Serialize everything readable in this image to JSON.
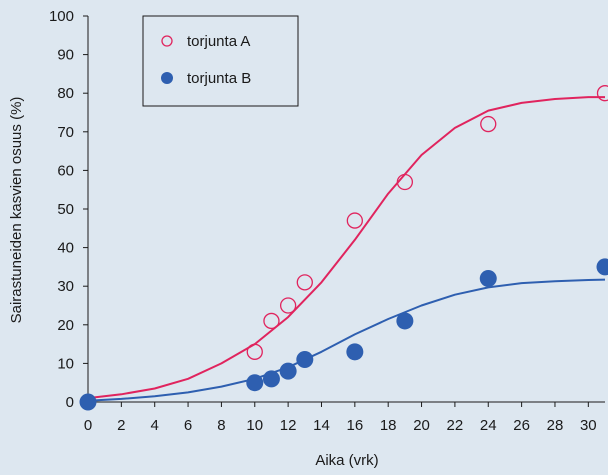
{
  "chart_data": {
    "type": "scatter",
    "title": "",
    "xlabel": "Aika (vrk)",
    "ylabel": "Sairastuneiden kasvien osuus (%)",
    "xlim": [
      0,
      31
    ],
    "ylim": [
      0,
      100
    ],
    "xticks": [
      0,
      2,
      4,
      6,
      8,
      10,
      12,
      14,
      16,
      18,
      20,
      22,
      24,
      26,
      28,
      30
    ],
    "yticks": [
      0,
      10,
      20,
      30,
      40,
      50,
      60,
      70,
      80,
      90,
      100
    ],
    "grid": false,
    "legend_position": "top-left",
    "series": [
      {
        "name": "torjunta A",
        "marker": "open-circle",
        "color": "#e0245e",
        "x": [
          0,
          10,
          11,
          12,
          13,
          16,
          19,
          24,
          31
        ],
        "y": [
          0,
          13,
          21,
          25,
          31,
          47,
          57,
          72,
          80
        ],
        "fit": {
          "x": [
            0,
            2,
            4,
            6,
            8,
            10,
            12,
            14,
            16,
            18,
            20,
            22,
            24,
            26,
            28,
            30,
            31
          ],
          "y": [
            1,
            2,
            3.5,
            6,
            10,
            15,
            22,
            31,
            42,
            54,
            64,
            71,
            75.5,
            77.5,
            78.5,
            79,
            79
          ]
        }
      },
      {
        "name": "torjunta B",
        "marker": "filled-circle",
        "color": "#2e5fb0",
        "x": [
          0,
          10,
          11,
          12,
          13,
          16,
          19,
          24,
          31
        ],
        "y": [
          0,
          5,
          6,
          8,
          11,
          13,
          21,
          32,
          35
        ],
        "fit": {
          "x": [
            0,
            2,
            4,
            6,
            8,
            10,
            12,
            14,
            16,
            18,
            20,
            22,
            24,
            26,
            28,
            30,
            31
          ],
          "y": [
            0.3,
            0.8,
            1.5,
            2.5,
            4,
            6,
            9,
            13,
            17.5,
            21.5,
            25,
            27.8,
            29.7,
            30.8,
            31.3,
            31.6,
            31.7
          ]
        }
      }
    ]
  }
}
